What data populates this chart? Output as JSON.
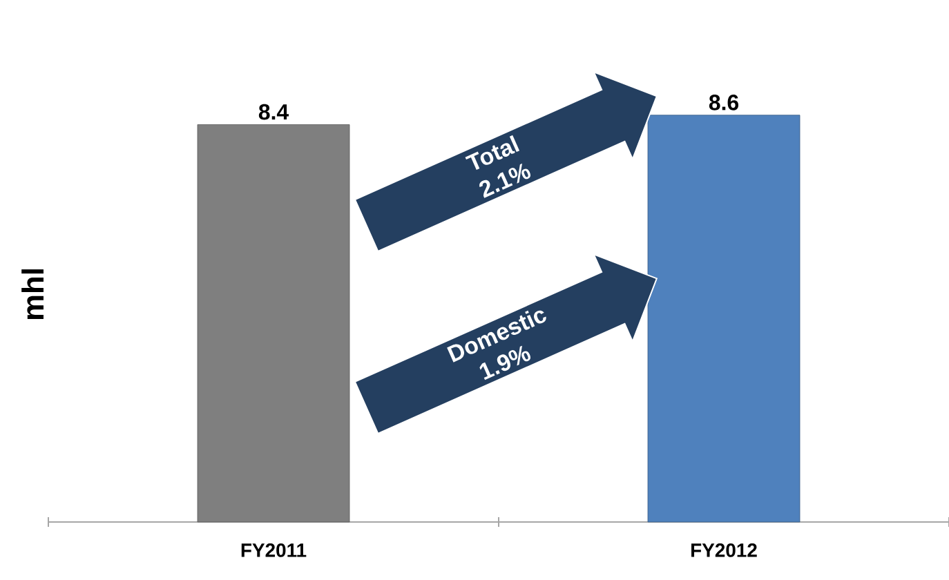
{
  "chart_data": {
    "type": "bar",
    "ylabel": "mhl",
    "categories": [
      "FY2011",
      "FY2012"
    ],
    "values": [
      8.4,
      8.6
    ],
    "colors": [
      "#7f7f7f",
      "#4f81bd"
    ],
    "data_labels": true,
    "annotations": [
      "Total 2.1%",
      "Domestic 1.9%"
    ]
  }
}
